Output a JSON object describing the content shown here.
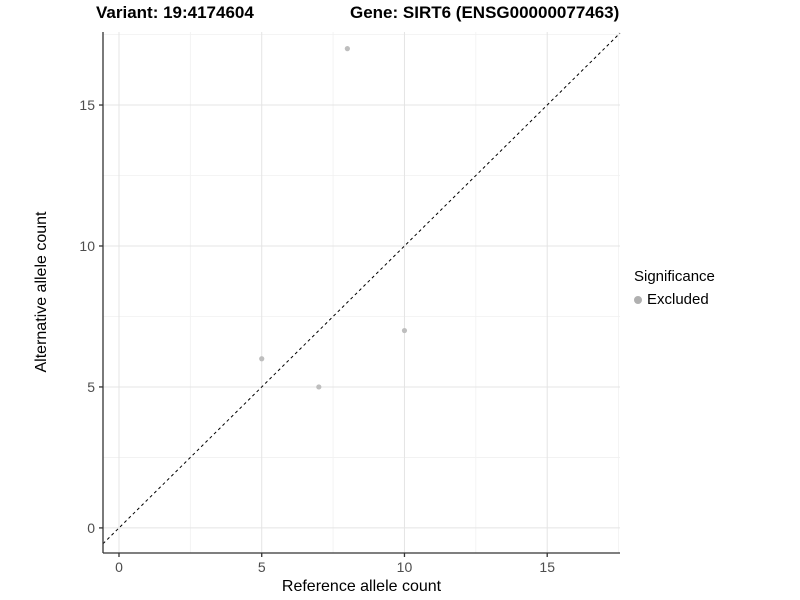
{
  "titles": {
    "variant": "Variant: 19:4174604",
    "gene": "Gene: SIRT6 (ENSG00000077463)"
  },
  "legend": {
    "title": "Significance",
    "items": [
      {
        "label": "Excluded",
        "color": "#b0b0b0"
      }
    ]
  },
  "chart_data": {
    "type": "scatter",
    "title_left": "Variant: 19:4174604",
    "title_right": "Gene: SIRT6 (ENSG00000077463)",
    "xlabel": "Reference allele count",
    "ylabel": "Alternative allele count",
    "xlim": [
      -0.56,
      17.55
    ],
    "ylim": [
      -0.89,
      17.59
    ],
    "x_ticks": [
      0,
      5,
      10,
      15
    ],
    "y_ticks": [
      0,
      5,
      10,
      15
    ],
    "x_minor_ticks": [
      2.5,
      7.5,
      12.5,
      17.5
    ],
    "y_minor_ticks": [
      2.5,
      7.5,
      12.5,
      17.5
    ],
    "grid": true,
    "legend_position": "right",
    "series": [
      {
        "name": "Excluded",
        "color": "#bebebe",
        "points": [
          [
            5,
            6
          ],
          [
            7,
            5
          ],
          [
            8,
            17
          ],
          [
            10,
            7
          ]
        ]
      }
    ],
    "reference_line": {
      "type": "identity",
      "slope": 1,
      "intercept": 0,
      "style": "dashed",
      "color": "#000000"
    },
    "colors": {
      "point": "#bebebe",
      "grid_major": "#e4e4e4",
      "grid_minor": "#f1f1f1",
      "axis_line": "#333333",
      "tick_label": "#4d4d4d",
      "panel_background": "#ffffff"
    }
  }
}
